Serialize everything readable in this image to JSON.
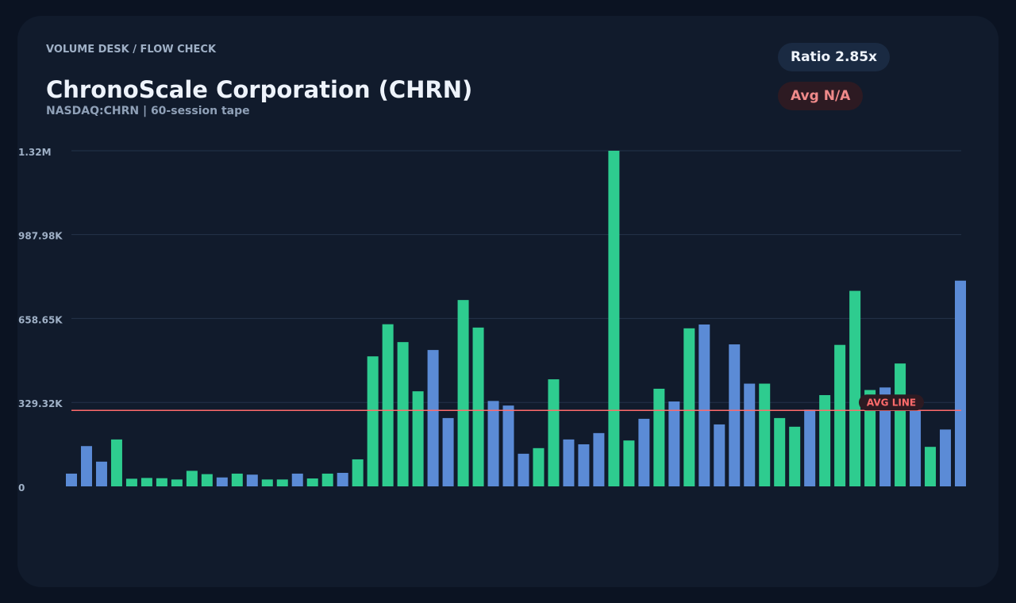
{
  "header": {
    "eyebrow": "VOLUME DESK / FLOW CHECK",
    "title": "ChronoScale Corporation (CHRN)",
    "subtitle": "NASDAQ:CHRN | 60-session tape"
  },
  "badges": {
    "ratio": "Ratio 2.85x",
    "avg": "Avg N/A"
  },
  "colors": {
    "up": "#2ecc8f",
    "down": "#5b8bd6",
    "avg_line": "#ff6b6b",
    "grid": "#24334a"
  },
  "chart_data": {
    "type": "bar",
    "ylim": [
      0,
      1316600
    ],
    "yticks": [
      0,
      329320,
      658650,
      987980,
      1316600
    ],
    "ytick_labels": [
      "0",
      "329.32K",
      "658.65K",
      "987.98K",
      "1.32M"
    ],
    "grid": true,
    "avg_line": {
      "value": 298000,
      "label": "AVG LINE"
    },
    "bars": [
      {
        "value": 50000,
        "dir": "down"
      },
      {
        "value": 158000,
        "dir": "down"
      },
      {
        "value": 97000,
        "dir": "down"
      },
      {
        "value": 184000,
        "dir": "up"
      },
      {
        "value": 30000,
        "dir": "up"
      },
      {
        "value": 33000,
        "dir": "up"
      },
      {
        "value": 32000,
        "dir": "up"
      },
      {
        "value": 27000,
        "dir": "up"
      },
      {
        "value": 61000,
        "dir": "up"
      },
      {
        "value": 48000,
        "dir": "up"
      },
      {
        "value": 35000,
        "dir": "down"
      },
      {
        "value": 50000,
        "dir": "up"
      },
      {
        "value": 46000,
        "dir": "down"
      },
      {
        "value": 27000,
        "dir": "up"
      },
      {
        "value": 27000,
        "dir": "up"
      },
      {
        "value": 50000,
        "dir": "down"
      },
      {
        "value": 31000,
        "dir": "up"
      },
      {
        "value": 50000,
        "dir": "up"
      },
      {
        "value": 53000,
        "dir": "down"
      },
      {
        "value": 106000,
        "dir": "up"
      },
      {
        "value": 510000,
        "dir": "up"
      },
      {
        "value": 636000,
        "dir": "up"
      },
      {
        "value": 566000,
        "dir": "up"
      },
      {
        "value": 373000,
        "dir": "up"
      },
      {
        "value": 535000,
        "dir": "down"
      },
      {
        "value": 268000,
        "dir": "down"
      },
      {
        "value": 731000,
        "dir": "up"
      },
      {
        "value": 623000,
        "dir": "up"
      },
      {
        "value": 335000,
        "dir": "down"
      },
      {
        "value": 317000,
        "dir": "down"
      },
      {
        "value": 128000,
        "dir": "down"
      },
      {
        "value": 150000,
        "dir": "up"
      },
      {
        "value": 420000,
        "dir": "up"
      },
      {
        "value": 184000,
        "dir": "down"
      },
      {
        "value": 165000,
        "dir": "down"
      },
      {
        "value": 209000,
        "dir": "down"
      },
      {
        "value": 1316600,
        "dir": "up"
      },
      {
        "value": 180000,
        "dir": "up"
      },
      {
        "value": 265000,
        "dir": "down"
      },
      {
        "value": 383000,
        "dir": "up"
      },
      {
        "value": 333000,
        "dir": "down"
      },
      {
        "value": 620000,
        "dir": "up"
      },
      {
        "value": 635000,
        "dir": "down"
      },
      {
        "value": 243000,
        "dir": "down"
      },
      {
        "value": 557000,
        "dir": "down"
      },
      {
        "value": 403000,
        "dir": "down"
      },
      {
        "value": 403000,
        "dir": "up"
      },
      {
        "value": 268000,
        "dir": "up"
      },
      {
        "value": 234000,
        "dir": "up"
      },
      {
        "value": 301000,
        "dir": "down"
      },
      {
        "value": 358000,
        "dir": "up"
      },
      {
        "value": 555000,
        "dir": "up"
      },
      {
        "value": 767000,
        "dir": "up"
      },
      {
        "value": 378000,
        "dir": "up"
      },
      {
        "value": 388000,
        "dir": "down"
      },
      {
        "value": 482000,
        "dir": "up"
      },
      {
        "value": 298000,
        "dir": "down"
      },
      {
        "value": 155000,
        "dir": "up"
      },
      {
        "value": 223000,
        "dir": "down"
      },
      {
        "value": 807000,
        "dir": "down"
      }
    ]
  }
}
